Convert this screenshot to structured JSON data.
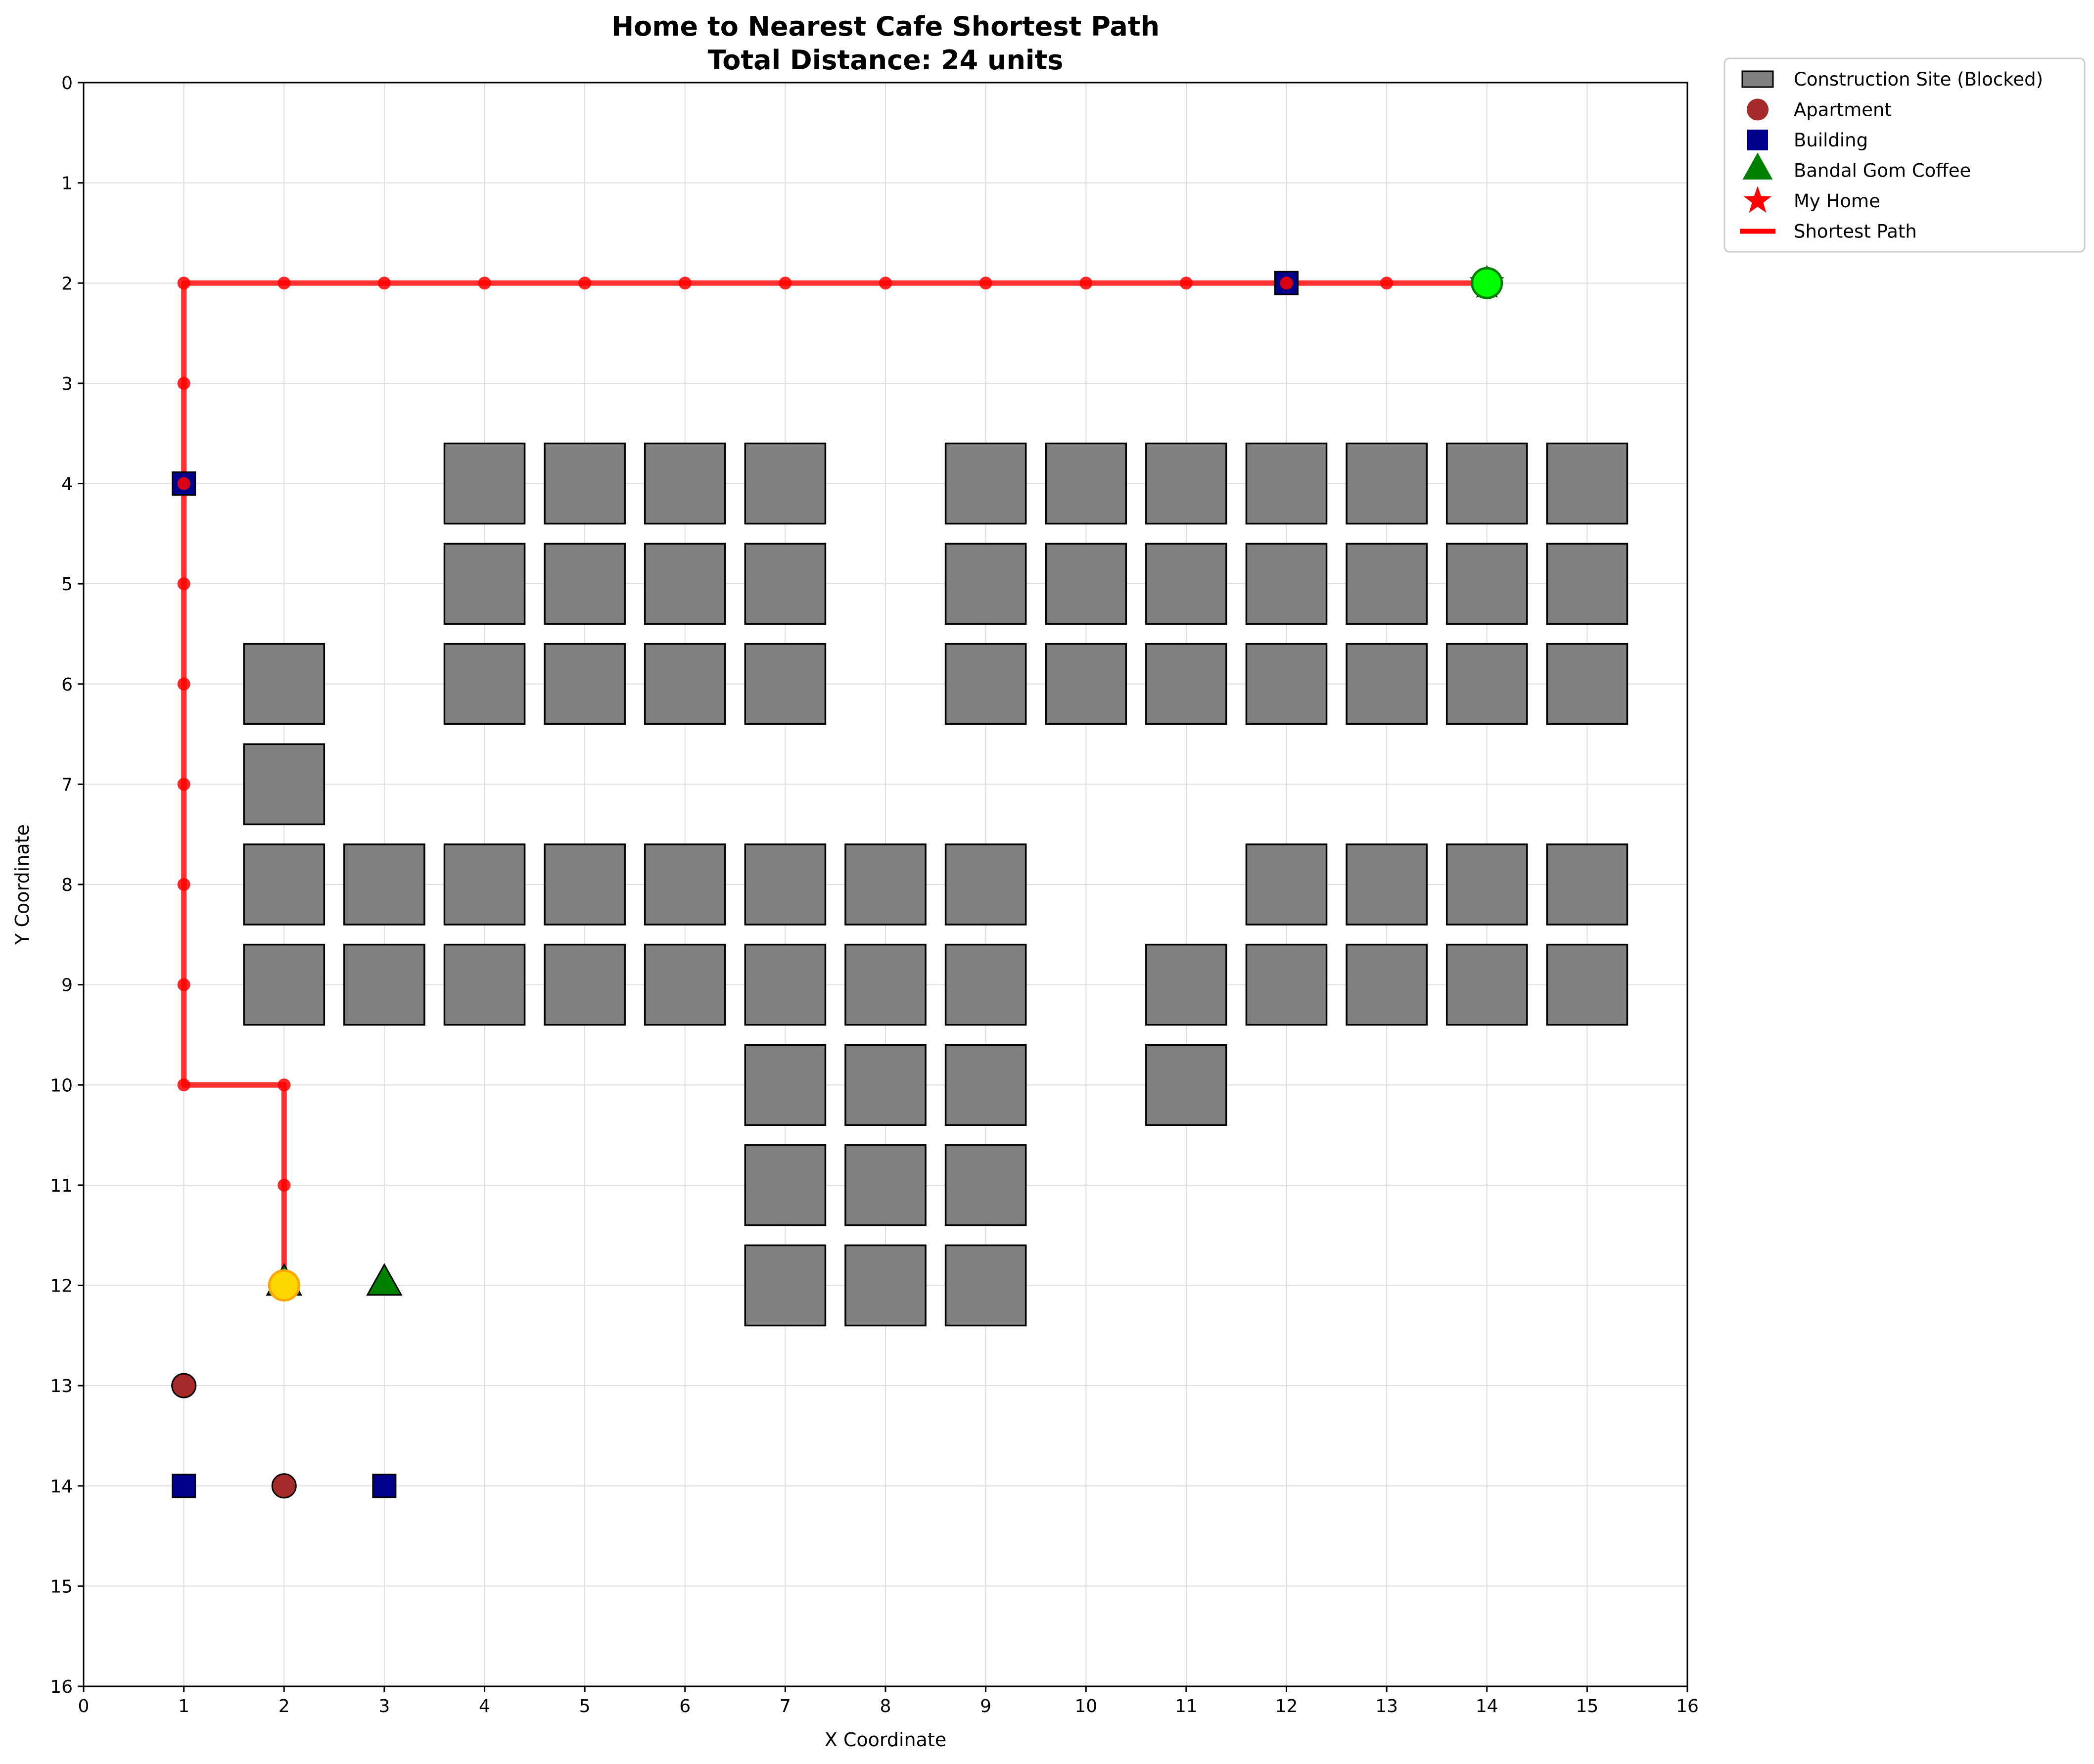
{
  "chart_data": {
    "type": "scatter",
    "title": "Home to Nearest Cafe Shortest Path",
    "subtitle": "Total Distance: 24 units",
    "xlabel": "X Coordinate",
    "ylabel": "Y Coordinate",
    "xlim": [
      0,
      16
    ],
    "ylim": [
      0,
      16
    ],
    "y_inverted": true,
    "grid": true,
    "legend_position": "outside-top-right",
    "x_ticks": [
      "0",
      "1",
      "2",
      "3",
      "4",
      "5",
      "6",
      "7",
      "8",
      "9",
      "10",
      "11",
      "12",
      "13",
      "14",
      "15",
      "16"
    ],
    "y_ticks": [
      "0",
      "1",
      "2",
      "3",
      "4",
      "5",
      "6",
      "7",
      "8",
      "9",
      "10",
      "11",
      "12",
      "13",
      "14",
      "15",
      "16"
    ],
    "legend": [
      {
        "key": "construction",
        "label": "Construction Site (Blocked)",
        "marker": "rect",
        "color": "#808080"
      },
      {
        "key": "apartment",
        "label": "Apartment",
        "marker": "circle",
        "color": "#a52a2a"
      },
      {
        "key": "building",
        "label": "Building",
        "marker": "square",
        "color": "#00008b"
      },
      {
        "key": "cafe",
        "label": "Bandal Gom Coffee",
        "marker": "triangle",
        "color": "#008000"
      },
      {
        "key": "home",
        "label": "My Home",
        "marker": "star",
        "color": "#ff0000"
      },
      {
        "key": "path",
        "label": "Shortest Path",
        "marker": "line",
        "color": "#ff0000"
      }
    ],
    "construction_sites": [
      [
        4,
        4
      ],
      [
        5,
        4
      ],
      [
        6,
        4
      ],
      [
        7,
        4
      ],
      [
        9,
        4
      ],
      [
        10,
        4
      ],
      [
        11,
        4
      ],
      [
        12,
        4
      ],
      [
        13,
        4
      ],
      [
        14,
        4
      ],
      [
        15,
        4
      ],
      [
        4,
        5
      ],
      [
        5,
        5
      ],
      [
        6,
        5
      ],
      [
        7,
        5
      ],
      [
        9,
        5
      ],
      [
        10,
        5
      ],
      [
        11,
        5
      ],
      [
        12,
        5
      ],
      [
        13,
        5
      ],
      [
        14,
        5
      ],
      [
        15,
        5
      ],
      [
        2,
        6
      ],
      [
        4,
        6
      ],
      [
        5,
        6
      ],
      [
        6,
        6
      ],
      [
        7,
        6
      ],
      [
        9,
        6
      ],
      [
        10,
        6
      ],
      [
        11,
        6
      ],
      [
        12,
        6
      ],
      [
        13,
        6
      ],
      [
        14,
        6
      ],
      [
        15,
        6
      ],
      [
        2,
        7
      ],
      [
        2,
        8
      ],
      [
        3,
        8
      ],
      [
        4,
        8
      ],
      [
        5,
        8
      ],
      [
        6,
        8
      ],
      [
        7,
        8
      ],
      [
        8,
        8
      ],
      [
        9,
        8
      ],
      [
        12,
        8
      ],
      [
        13,
        8
      ],
      [
        14,
        8
      ],
      [
        15,
        8
      ],
      [
        2,
        9
      ],
      [
        3,
        9
      ],
      [
        4,
        9
      ],
      [
        5,
        9
      ],
      [
        6,
        9
      ],
      [
        7,
        9
      ],
      [
        8,
        9
      ],
      [
        9,
        9
      ],
      [
        11,
        9
      ],
      [
        12,
        9
      ],
      [
        13,
        9
      ],
      [
        14,
        9
      ],
      [
        15,
        9
      ],
      [
        7,
        10
      ],
      [
        8,
        10
      ],
      [
        9,
        10
      ],
      [
        11,
        10
      ],
      [
        7,
        11
      ],
      [
        8,
        11
      ],
      [
        9,
        11
      ],
      [
        7,
        12
      ],
      [
        8,
        12
      ],
      [
        9,
        12
      ]
    ],
    "apartments": [
      [
        1,
        13
      ],
      [
        2,
        14
      ]
    ],
    "buildings": [
      [
        12,
        2
      ],
      [
        1,
        4
      ],
      [
        1,
        14
      ],
      [
        3,
        14
      ]
    ],
    "cafes": [
      [
        2,
        12
      ],
      [
        3,
        12
      ]
    ],
    "home": [
      14,
      2
    ],
    "path_start": [
      14,
      2
    ],
    "path_end": [
      2,
      12
    ],
    "path": [
      [
        14,
        2
      ],
      [
        13,
        2
      ],
      [
        12,
        2
      ],
      [
        11,
        2
      ],
      [
        10,
        2
      ],
      [
        9,
        2
      ],
      [
        8,
        2
      ],
      [
        7,
        2
      ],
      [
        6,
        2
      ],
      [
        5,
        2
      ],
      [
        4,
        2
      ],
      [
        3,
        2
      ],
      [
        2,
        2
      ],
      [
        1,
        2
      ],
      [
        1,
        3
      ],
      [
        1,
        4
      ],
      [
        1,
        5
      ],
      [
        1,
        6
      ],
      [
        1,
        7
      ],
      [
        1,
        8
      ],
      [
        1,
        9
      ],
      [
        1,
        10
      ],
      [
        2,
        10
      ],
      [
        2,
        11
      ],
      [
        2,
        12
      ]
    ],
    "colors": {
      "construction_fill": "#808080",
      "apartment": "#a52a2a",
      "building": "#00008b",
      "cafe": "#008000",
      "path": "#ff0000",
      "start_marker": "#00ff00",
      "end_marker": "#ffd700",
      "end_marker_edge": "#ffa500",
      "grid": "#dddddd"
    }
  }
}
